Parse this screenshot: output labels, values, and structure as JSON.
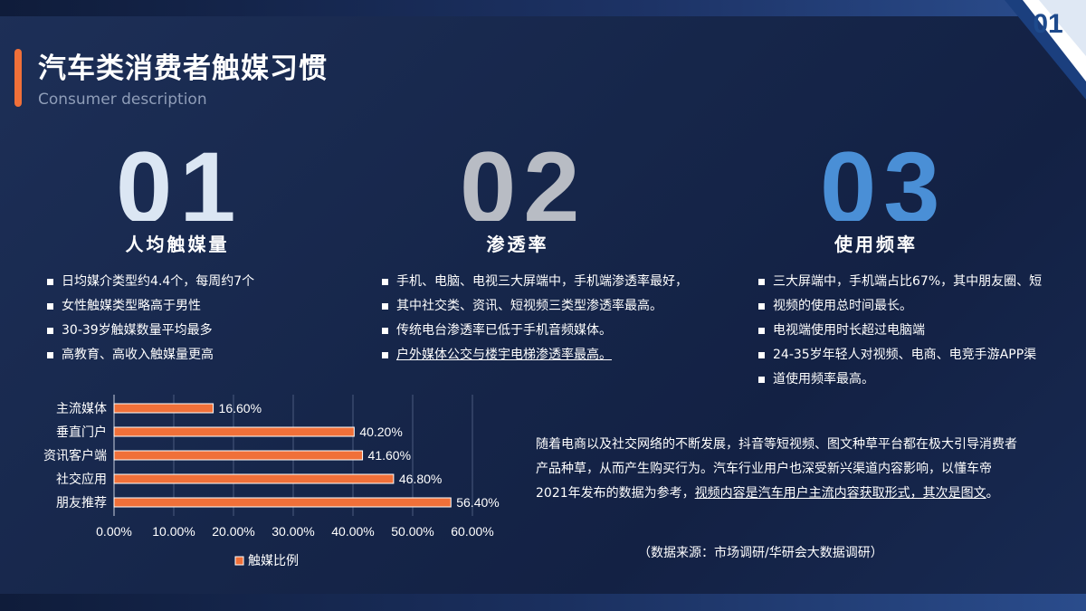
{
  "page": {
    "number": "01"
  },
  "header": {
    "title": "汽车类消费者触媒习惯",
    "subtitle": "Consumer description"
  },
  "columns": [
    {
      "number": "01",
      "number_color": "#dbe6f3",
      "title": "人均触媒量",
      "bullets": [
        "日均媒介类型约4.4个，每周约7个",
        "女性触媒类型略高于男性",
        "30-39岁触媒数量平均最多",
        "高教育、高收入触媒量更高"
      ]
    },
    {
      "number": "02",
      "number_color": "#b8bcc4",
      "title": "渗透率",
      "bullets": [
        "手机、电脑、电视三大屏端中，手机端渗透率最好，",
        "其中社交类、资讯、短视频三类型渗透率最高。",
        "传统电台渗透率已低于手机音频媒体。",
        "户外媒体公交与楼宇电梯渗透率最高。"
      ]
    },
    {
      "number": "03",
      "number_color": "#4a8fd6",
      "title": "使用频率",
      "bullets": [
        "三大屏端中，手机端占比67%，其中朋友圈、短",
        "视频的使用总时间最长。",
        "电视端使用时长超过电脑端",
        "24-35岁年轻人对视频、电商、电竞手游APP渠",
        "道使用频率最高。"
      ]
    }
  ],
  "paragraph": {
    "line1": "随着电商以及社交网络的不断发展，抖音等短视频、图文种草平台都在极大引导消费者",
    "line2": "产品种草，从而产生购买行为。汽车行业用户也深受新兴渠道内容影响，以懂车帝",
    "line3_plain": "2021年发布的数据为参考，",
    "line3_underlined": "视频内容是汽车用户主流内容获取形式，其次是图文",
    "line3_end": "。"
  },
  "source": "（数据来源：市场调研/华研会大数据调研）",
  "chart_data": {
    "type": "bar",
    "orientation": "horizontal",
    "categories": [
      "主流媒体",
      "垂直门户",
      "资讯客户端",
      "社交应用",
      "朋友推荐"
    ],
    "series": [
      {
        "name": "触媒比例",
        "values": [
          16.6,
          40.2,
          41.6,
          46.8,
          56.4
        ],
        "color": "#f07039"
      }
    ],
    "data_labels": [
      "16.60%",
      "40.20%",
      "41.60%",
      "46.80%",
      "56.40%"
    ],
    "x_ticks": [
      "0.00%",
      "10.00%",
      "20.00%",
      "30.00%",
      "40.00%",
      "50.00%",
      "60.00%"
    ],
    "xlim": [
      0,
      60
    ],
    "grid": true,
    "legend_position": "bottom"
  }
}
